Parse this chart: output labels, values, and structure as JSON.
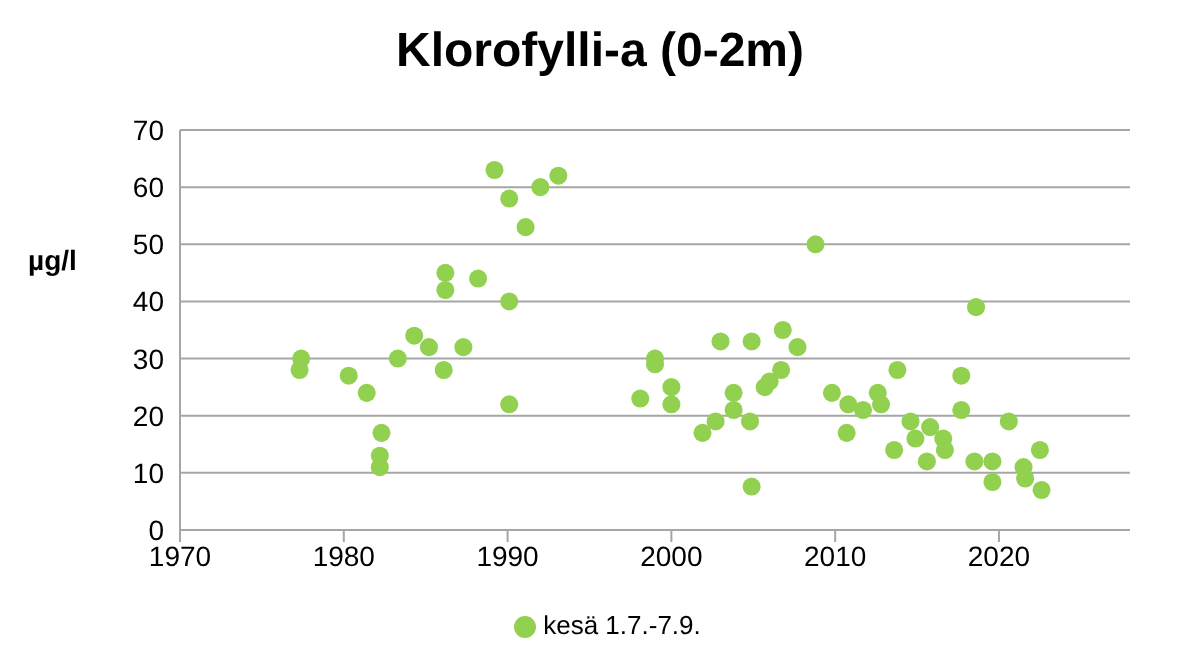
{
  "chart_data": {
    "type": "scatter",
    "title": "Klorofylli-a (0-2m)",
    "ylabel": "µg/l",
    "series": [
      {
        "name": "kesä 1.7.-7.9.",
        "color": "#92d050",
        "x": [
          1977.4,
          1977.3,
          1980.3,
          1981.4,
          1982.3,
          1982.2,
          1982.2,
          1983.3,
          1984.3,
          1985.2,
          1986.2,
          1986.2,
          1986.1,
          1987.3,
          1988.2,
          1989.2,
          1990.1,
          1990.1,
          1990.1,
          1991.1,
          1992,
          1993.1,
          1998.1,
          1999,
          1999,
          2000,
          2000,
          2001.9,
          2002.7,
          2003,
          2003.8,
          2003.8,
          2004.8,
          2004.9,
          2004.9,
          2005.7,
          2006,
          2006.7,
          2006.8,
          2007.7,
          2008.8,
          2009.8,
          2010.7,
          2010.8,
          2011.7,
          2012.6,
          2012.8,
          2013.6,
          2013.8,
          2014.6,
          2014.9,
          2015.6,
          2015.8,
          2016.6,
          2016.7,
          2017.7,
          2017.7,
          2018.6,
          2018.5,
          2019.6,
          2019.6,
          2020.6,
          2021.5,
          2021.6,
          2022.5,
          2022.6
        ],
        "values": [
          30,
          28,
          27,
          24,
          17,
          13,
          11,
          30,
          34,
          32,
          45,
          42,
          28,
          32,
          44,
          63,
          58,
          40,
          22,
          53,
          60,
          62,
          23,
          30,
          29,
          25,
          22,
          17,
          19,
          33,
          24,
          21,
          19,
          7.6,
          33,
          25,
          26,
          28,
          35,
          32,
          50,
          24,
          17,
          22,
          21,
          24,
          22,
          14,
          28,
          19,
          16,
          12,
          18,
          16,
          14,
          27,
          21,
          39,
          12,
          12,
          8.4,
          19,
          11,
          9,
          14,
          7
        ]
      }
    ],
    "xlim": [
      1970,
      2028
    ],
    "xticks": [
      1970,
      1980,
      1990,
      2000,
      2010,
      2020
    ],
    "ylim": [
      0,
      70
    ],
    "yticks": [
      0,
      10,
      20,
      30,
      40,
      50,
      60,
      70
    ],
    "grid": "y",
    "legend": "bottom",
    "marker": "circle"
  }
}
